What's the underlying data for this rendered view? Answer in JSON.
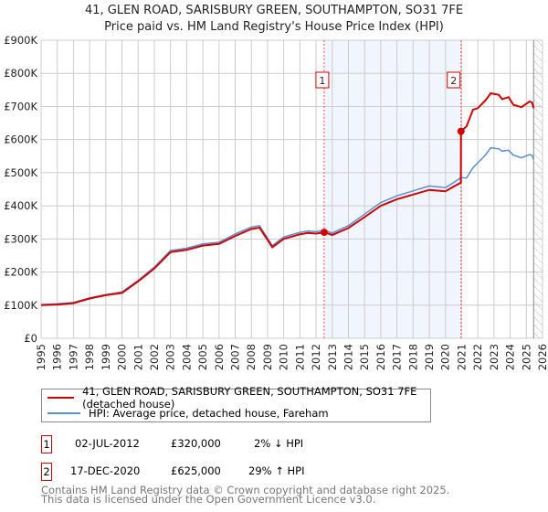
{
  "chart_data": {
    "type": "line",
    "title": "41, GLEN ROAD, SARISBURY GREEN, SOUTHAMPTON, SO31 7FE",
    "subtitle": "Price paid vs. HM Land Registry's House Price Index (HPI)",
    "xlim": [
      1995,
      2026
    ],
    "ylim": [
      0,
      900000
    ],
    "x_ticks": [
      "1995",
      "1996",
      "1997",
      "1998",
      "1999",
      "2000",
      "2001",
      "2002",
      "2003",
      "2004",
      "2005",
      "2006",
      "2007",
      "2008",
      "2009",
      "2010",
      "2011",
      "2012",
      "2013",
      "2014",
      "2015",
      "2016",
      "2017",
      "2018",
      "2019",
      "2020",
      "2021",
      "2022",
      "2023",
      "2024",
      "2025",
      "2026"
    ],
    "y_ticks": [
      {
        "v": 0,
        "label": "£0"
      },
      {
        "v": 100000,
        "label": "£100K"
      },
      {
        "v": 200000,
        "label": "£200K"
      },
      {
        "v": 300000,
        "label": "£300K"
      },
      {
        "v": 400000,
        "label": "£400K"
      },
      {
        "v": 500000,
        "label": "£500K"
      },
      {
        "v": 600000,
        "label": "£600K"
      },
      {
        "v": 700000,
        "label": "£700K"
      },
      {
        "v": 800000,
        "label": "£800K"
      },
      {
        "v": 900000,
        "label": "£900K"
      }
    ],
    "grid": true,
    "shaded_range": [
      2012.5,
      2020.96
    ],
    "forecast_hatch_from": 2025.45,
    "series": [
      {
        "name": "41, GLEN ROAD, SARISBURY GREEN, SOUTHAMPTON, SO31 7FE (detached house)",
        "color": "#cc0000",
        "points": [
          [
            1995,
            100000
          ],
          [
            1996,
            102000
          ],
          [
            1997,
            106000
          ],
          [
            1998,
            120000
          ],
          [
            1999,
            130000
          ],
          [
            2000,
            137000
          ],
          [
            2001,
            172000
          ],
          [
            2002,
            211000
          ],
          [
            2003,
            260000
          ],
          [
            2004,
            267000
          ],
          [
            2005,
            280000
          ],
          [
            2006,
            285000
          ],
          [
            2007,
            309000
          ],
          [
            2008,
            330000
          ],
          [
            2008.5,
            334000
          ],
          [
            2009.3,
            275000
          ],
          [
            2010,
            300000
          ],
          [
            2011,
            314000
          ],
          [
            2011.5,
            318000
          ],
          [
            2012,
            316000
          ],
          [
            2012.5,
            320000
          ],
          [
            2013,
            312000
          ],
          [
            2014,
            333000
          ],
          [
            2015,
            366000
          ],
          [
            2016,
            400000
          ],
          [
            2017,
            420000
          ],
          [
            2018,
            434000
          ],
          [
            2019,
            448000
          ],
          [
            2020,
            444000
          ],
          [
            2020.5,
            458000
          ],
          [
            2020.95,
            470000
          ],
          [
            2020.96,
            625000
          ],
          [
            2021.3,
            640000
          ],
          [
            2021.7,
            690000
          ],
          [
            2022,
            695000
          ],
          [
            2022.5,
            720000
          ],
          [
            2022.8,
            740000
          ],
          [
            2023.3,
            735000
          ],
          [
            2023.5,
            722000
          ],
          [
            2023.9,
            728000
          ],
          [
            2024.2,
            705000
          ],
          [
            2024.7,
            698000
          ],
          [
            2025.2,
            715000
          ],
          [
            2025.35,
            712000
          ],
          [
            2025.45,
            695000
          ]
        ]
      },
      {
        "name": "HPI: Average price, detached house, Fareham",
        "color": "#5b8fd0",
        "points": [
          [
            1995,
            102000
          ],
          [
            1996,
            104000
          ],
          [
            1997,
            108000
          ],
          [
            1998,
            122000
          ],
          [
            1999,
            132000
          ],
          [
            2000,
            140000
          ],
          [
            2001,
            175000
          ],
          [
            2002,
            215000
          ],
          [
            2003,
            265000
          ],
          [
            2004,
            272000
          ],
          [
            2005,
            285000
          ],
          [
            2006,
            290000
          ],
          [
            2007,
            315000
          ],
          [
            2008,
            336000
          ],
          [
            2008.5,
            340000
          ],
          [
            2009.3,
            280000
          ],
          [
            2010,
            306000
          ],
          [
            2011,
            320000
          ],
          [
            2011.5,
            324000
          ],
          [
            2012,
            322000
          ],
          [
            2012.5,
            326000
          ],
          [
            2013,
            318000
          ],
          [
            2014,
            340000
          ],
          [
            2015,
            375000
          ],
          [
            2016,
            410000
          ],
          [
            2017,
            430000
          ],
          [
            2018,
            445000
          ],
          [
            2019,
            460000
          ],
          [
            2020,
            455000
          ],
          [
            2020.5,
            470000
          ],
          [
            2020.95,
            485000
          ],
          [
            2021.3,
            484000
          ],
          [
            2021.7,
            515000
          ],
          [
            2022,
            530000
          ],
          [
            2022.5,
            555000
          ],
          [
            2022.8,
            575000
          ],
          [
            2023.3,
            572000
          ],
          [
            2023.5,
            565000
          ],
          [
            2023.9,
            568000
          ],
          [
            2024.2,
            553000
          ],
          [
            2024.7,
            545000
          ],
          [
            2025.2,
            555000
          ],
          [
            2025.35,
            552000
          ],
          [
            2025.45,
            540000
          ]
        ]
      }
    ],
    "sales": [
      {
        "label": "1",
        "x": 2012.5,
        "price": 320000
      },
      {
        "label": "2",
        "x": 2020.96,
        "price": 625000
      }
    ]
  },
  "legend": {
    "red": "41, GLEN ROAD, SARISBURY GREEN, SOUTHAMPTON, SO31 7FE (detached house)",
    "blue": "HPI: Average price, detached house, Fareham"
  },
  "transactions": [
    {
      "num": "1",
      "date": "02-JUL-2012",
      "price": "£320,000",
      "hpi": "2% ↓ HPI"
    },
    {
      "num": "2",
      "date": "17-DEC-2020",
      "price": "£625,000",
      "hpi": "29% ↑ HPI"
    }
  ],
  "footer": {
    "line1": "Contains HM Land Registry data © Crown copyright and database right 2025.",
    "line2": "This data is licensed under the Open Government Licence v3.0."
  }
}
